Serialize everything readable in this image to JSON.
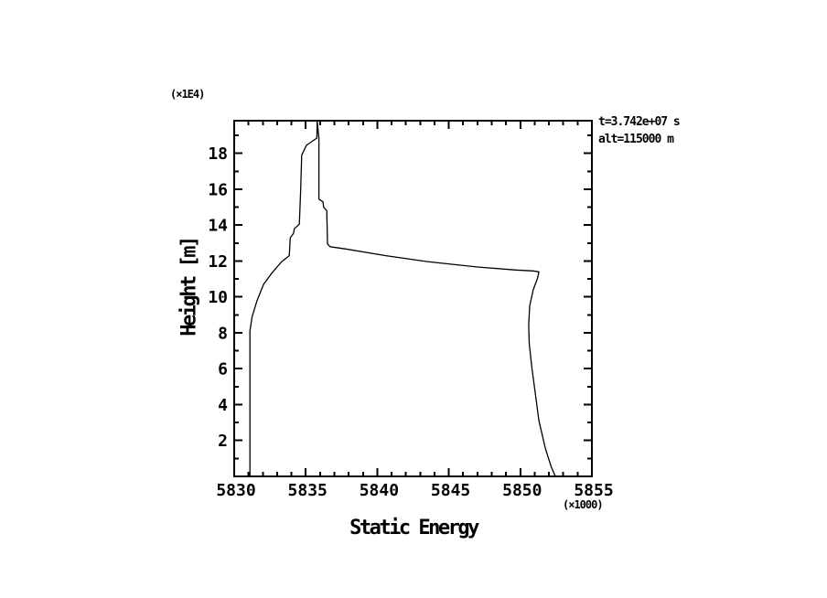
{
  "page": {
    "background": "#ffffff",
    "ink": "#000000"
  },
  "annotation": {
    "line1": "t=3.742e+07 s",
    "line2": "alt=115000 m"
  },
  "y_scale_note": "(×1E4)",
  "x_scale_note": "(×1000)",
  "chart_data": {
    "type": "line",
    "title": "",
    "xlabel": "Static Energy",
    "ylabel": "Height [m]",
    "x_unit_multiplier": "×1000",
    "y_unit_multiplier": "×1E4",
    "xlim": [
      5830,
      5855
    ],
    "ylim": [
      0,
      19.82
    ],
    "xticks_major": [
      5830,
      5835,
      5840,
      5845,
      5850,
      5855
    ],
    "xtick_minor_step": 1,
    "yticks_major": [
      2,
      4,
      6,
      8,
      10,
      12,
      14,
      16,
      18
    ],
    "ytick_minor_step": 1,
    "grid": false,
    "legend": "none",
    "series": [
      {
        "name": "static-energy-profile",
        "points": [
          [
            5831.1,
            0.0
          ],
          [
            5831.1,
            8.1
          ],
          [
            5831.25,
            8.9
          ],
          [
            5831.6,
            9.8
          ],
          [
            5832.05,
            10.7
          ],
          [
            5832.6,
            11.3
          ],
          [
            5833.3,
            11.95
          ],
          [
            5833.85,
            12.3
          ],
          [
            5833.92,
            13.3
          ],
          [
            5834.15,
            13.55
          ],
          [
            5834.2,
            13.8
          ],
          [
            5834.55,
            14.05
          ],
          [
            5834.65,
            16.0
          ],
          [
            5834.72,
            17.9
          ],
          [
            5835.05,
            18.45
          ],
          [
            5835.5,
            18.7
          ],
          [
            5835.78,
            18.85
          ],
          [
            5835.8,
            19.82
          ],
          [
            5835.92,
            18.85
          ],
          [
            5835.92,
            15.45
          ],
          [
            5836.2,
            15.3
          ],
          [
            5836.25,
            15.0
          ],
          [
            5836.47,
            14.8
          ],
          [
            5836.52,
            12.95
          ],
          [
            5836.7,
            12.8
          ],
          [
            5837.8,
            12.67
          ],
          [
            5840.6,
            12.3
          ],
          [
            5843.5,
            11.97
          ],
          [
            5847.0,
            11.67
          ],
          [
            5849.7,
            11.5
          ],
          [
            5850.9,
            11.45
          ],
          [
            5851.3,
            11.4
          ],
          [
            5851.2,
            11.05
          ],
          [
            5850.9,
            10.4
          ],
          [
            5850.65,
            9.5
          ],
          [
            5850.58,
            8.4
          ],
          [
            5850.62,
            7.4
          ],
          [
            5850.8,
            6.1
          ],
          [
            5851.05,
            4.6
          ],
          [
            5851.3,
            3.1
          ],
          [
            5851.75,
            1.55
          ],
          [
            5852.15,
            0.55
          ],
          [
            5852.45,
            0.0
          ]
        ]
      }
    ]
  }
}
